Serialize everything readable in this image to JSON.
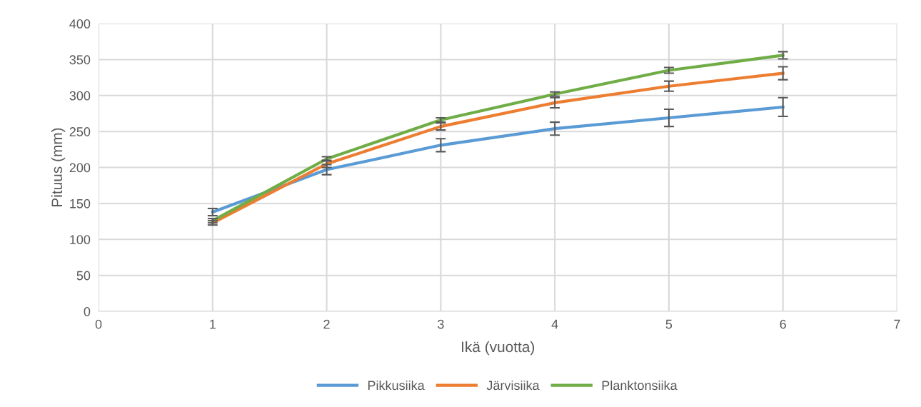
{
  "chart_data": {
    "type": "line",
    "xlabel": "Ikä (vuotta)",
    "ylabel": "Pituus (mm)",
    "x": [
      1,
      2,
      3,
      4,
      5,
      6
    ],
    "series": [
      {
        "name": "Pikkusiika",
        "color": "#5b9bd5",
        "values": [
          138,
          197,
          231,
          254,
          269,
          284
        ],
        "errors": [
          5,
          7,
          9,
          9,
          12,
          13
        ]
      },
      {
        "name": "Järvisiika",
        "color": "#ed7d31",
        "values": [
          123,
          205,
          257,
          290,
          313,
          331
        ],
        "errors": [
          3,
          5,
          5,
          7,
          7,
          9
        ]
      },
      {
        "name": "Planktonsiika",
        "color": "#70ad47",
        "values": [
          126,
          212,
          266,
          302,
          335,
          356
        ],
        "errors": [
          3,
          3,
          3,
          3,
          4,
          5
        ]
      }
    ],
    "xlim": [
      0,
      7
    ],
    "xticks": [
      0,
      1,
      2,
      3,
      4,
      5,
      6,
      7
    ],
    "ylim": [
      0,
      400
    ],
    "yticks": [
      0,
      50,
      100,
      150,
      200,
      250,
      300,
      350,
      400
    ],
    "grid": true,
    "legend": "bottom",
    "marker": "none",
    "line_style": "solid"
  }
}
